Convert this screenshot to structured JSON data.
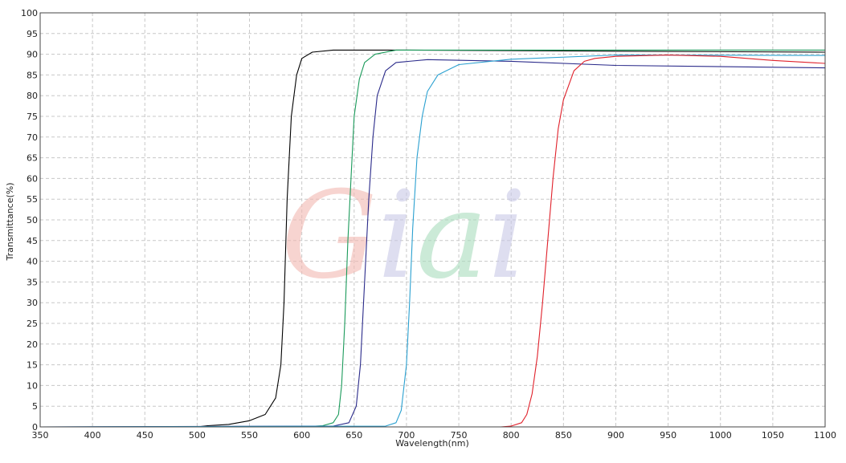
{
  "chart_data": {
    "type": "line",
    "title": "",
    "xlabel": "Wavelength(nm)",
    "ylabel": "Transmittance(%)",
    "xlim": [
      350,
      1100
    ],
    "ylim": [
      0,
      100
    ],
    "xticks": [
      350,
      400,
      450,
      500,
      550,
      600,
      650,
      700,
      750,
      800,
      850,
      900,
      950,
      1000,
      1050,
      1100
    ],
    "yticks": [
      0,
      5,
      10,
      15,
      20,
      25,
      30,
      35,
      40,
      45,
      50,
      55,
      60,
      65,
      70,
      75,
      80,
      85,
      90,
      95,
      100
    ],
    "grid": true,
    "watermark": "Giai",
    "series": [
      {
        "color": "#000000",
        "points": [
          [
            350,
            0
          ],
          [
            500,
            0
          ],
          [
            510,
            0.3
          ],
          [
            530,
            0.6
          ],
          [
            550,
            1.5
          ],
          [
            565,
            3
          ],
          [
            575,
            7
          ],
          [
            580,
            15
          ],
          [
            583,
            30
          ],
          [
            586,
            55
          ],
          [
            590,
            75
          ],
          [
            595,
            85
          ],
          [
            600,
            89
          ],
          [
            610,
            90.5
          ],
          [
            630,
            91
          ],
          [
            700,
            91
          ],
          [
            850,
            90.8
          ],
          [
            1100,
            90.5
          ]
        ]
      },
      {
        "color": "#1a9a5a",
        "points": [
          [
            350,
            0
          ],
          [
            600,
            0
          ],
          [
            620,
            0.3
          ],
          [
            630,
            1
          ],
          [
            635,
            3
          ],
          [
            638,
            10
          ],
          [
            641,
            25
          ],
          [
            644,
            45
          ],
          [
            647,
            60
          ],
          [
            650,
            75
          ],
          [
            655,
            84
          ],
          [
            660,
            88
          ],
          [
            670,
            90
          ],
          [
            690,
            91
          ],
          [
            750,
            91
          ],
          [
            1100,
            91
          ]
        ]
      },
      {
        "color": "#2a2a8a",
        "points": [
          [
            350,
            0
          ],
          [
            630,
            0.2
          ],
          [
            645,
            1
          ],
          [
            652,
            5
          ],
          [
            656,
            15
          ],
          [
            660,
            35
          ],
          [
            664,
            55
          ],
          [
            668,
            70
          ],
          [
            672,
            80
          ],
          [
            680,
            86
          ],
          [
            690,
            88
          ],
          [
            720,
            88.7
          ],
          [
            800,
            88.3
          ],
          [
            900,
            87.3
          ],
          [
            1100,
            86.7
          ]
        ]
      },
      {
        "color": "#2aa0d0",
        "points": [
          [
            350,
            0
          ],
          [
            680,
            0.2
          ],
          [
            690,
            1
          ],
          [
            695,
            4
          ],
          [
            700,
            15
          ],
          [
            703,
            30
          ],
          [
            706,
            48
          ],
          [
            710,
            65
          ],
          [
            715,
            75
          ],
          [
            720,
            81
          ],
          [
            730,
            85
          ],
          [
            750,
            87.5
          ],
          [
            800,
            88.8
          ],
          [
            900,
            89.8
          ],
          [
            1100,
            89.7
          ]
        ]
      },
      {
        "color": "#e0202a",
        "points": [
          [
            350,
            0
          ],
          [
            790,
            0
          ],
          [
            800,
            0.2
          ],
          [
            810,
            1
          ],
          [
            815,
            3
          ],
          [
            820,
            8
          ],
          [
            825,
            17
          ],
          [
            830,
            30
          ],
          [
            835,
            45
          ],
          [
            840,
            60
          ],
          [
            845,
            72
          ],
          [
            850,
            79
          ],
          [
            860,
            86
          ],
          [
            870,
            88.3
          ],
          [
            880,
            89
          ],
          [
            900,
            89.5
          ],
          [
            950,
            89.8
          ],
          [
            1000,
            89.5
          ],
          [
            1050,
            88.5
          ],
          [
            1100,
            87.8
          ]
        ]
      }
    ]
  }
}
